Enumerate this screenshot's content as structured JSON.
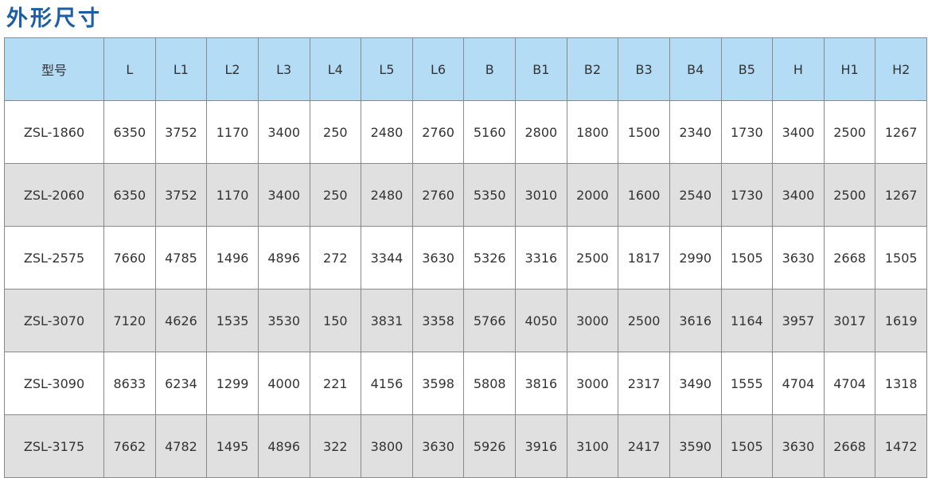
{
  "title": "外形尺寸",
  "colors": {
    "title": "#1c5ea6",
    "header_bg": "#b4dcf5",
    "alt_row_bg": "#e0e0e0"
  },
  "table": {
    "headers": [
      "型号",
      "L",
      "L1",
      "L2",
      "L3",
      "L4",
      "L5",
      "L6",
      "B",
      "B1",
      "B2",
      "B3",
      "B4",
      "B5",
      "H",
      "H1",
      "H2"
    ],
    "rows": [
      [
        "ZSL-1860",
        "6350",
        "3752",
        "1170",
        "3400",
        "250",
        "2480",
        "2760",
        "5160",
        "2800",
        "1800",
        "1500",
        "2340",
        "1730",
        "3400",
        "2500",
        "1267"
      ],
      [
        "ZSL-2060",
        "6350",
        "3752",
        "1170",
        "3400",
        "250",
        "2480",
        "2760",
        "5350",
        "3010",
        "2000",
        "1600",
        "2540",
        "1730",
        "3400",
        "2500",
        "1267"
      ],
      [
        "ZSL-2575",
        "7660",
        "4785",
        "1496",
        "4896",
        "272",
        "3344",
        "3630",
        "5326",
        "3316",
        "2500",
        "1817",
        "2990",
        "1505",
        "3630",
        "2668",
        "1505"
      ],
      [
        "ZSL-3070",
        "7120",
        "4626",
        "1535",
        "3530",
        "150",
        "3831",
        "3358",
        "5766",
        "4050",
        "3000",
        "2500",
        "3616",
        "1164",
        "3957",
        "3017",
        "1619"
      ],
      [
        "ZSL-3090",
        "8633",
        "6234",
        "1299",
        "4000",
        "221",
        "4156",
        "3598",
        "5808",
        "3816",
        "3000",
        "2317",
        "3490",
        "1555",
        "4704",
        "4704",
        "1318"
      ],
      [
        "ZSL-3175",
        "7662",
        "4782",
        "1495",
        "4896",
        "322",
        "3800",
        "3630",
        "5926",
        "3916",
        "3100",
        "2417",
        "3590",
        "1505",
        "3630",
        "2668",
        "1472"
      ]
    ]
  }
}
